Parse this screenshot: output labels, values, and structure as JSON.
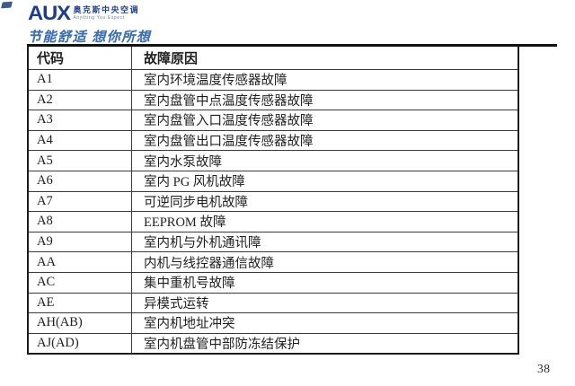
{
  "brand": {
    "logo_text": "AUX",
    "logo_cn": "奥克斯中央空调",
    "logo_en": "Anything You Expect",
    "slogan": "节能舒适 想你所想",
    "logo_color": "#1e3c8c",
    "slogan_color": "#3e6fad"
  },
  "table": {
    "headers": [
      "代码",
      "故障原因"
    ],
    "rows": [
      [
        "A1",
        "室内环境温度传感器故障"
      ],
      [
        "A2",
        "室内盘管中点温度传感器故障"
      ],
      [
        "A3",
        "室内盘管入口温度传感器故障"
      ],
      [
        "A4",
        "室内盘管出口温度传感器故障"
      ],
      [
        "A5",
        "室内水泵故障"
      ],
      [
        "A6",
        "室内 PG 风机故障"
      ],
      [
        "A7",
        "可逆同步电机故障"
      ],
      [
        "A8",
        "EEPROM 故障"
      ],
      [
        "A9",
        "室内机与外机通讯障"
      ],
      [
        "AA",
        "内机与线控器通信故障"
      ],
      [
        "AC",
        "集中重机号故障"
      ],
      [
        "AE",
        "异模式运转"
      ],
      [
        "AH(AB)",
        "室内机地址冲突"
      ],
      [
        "AJ(AD)",
        "室内机盘管中部防冻结保护"
      ]
    ]
  },
  "footer": {
    "page_number": "38"
  }
}
